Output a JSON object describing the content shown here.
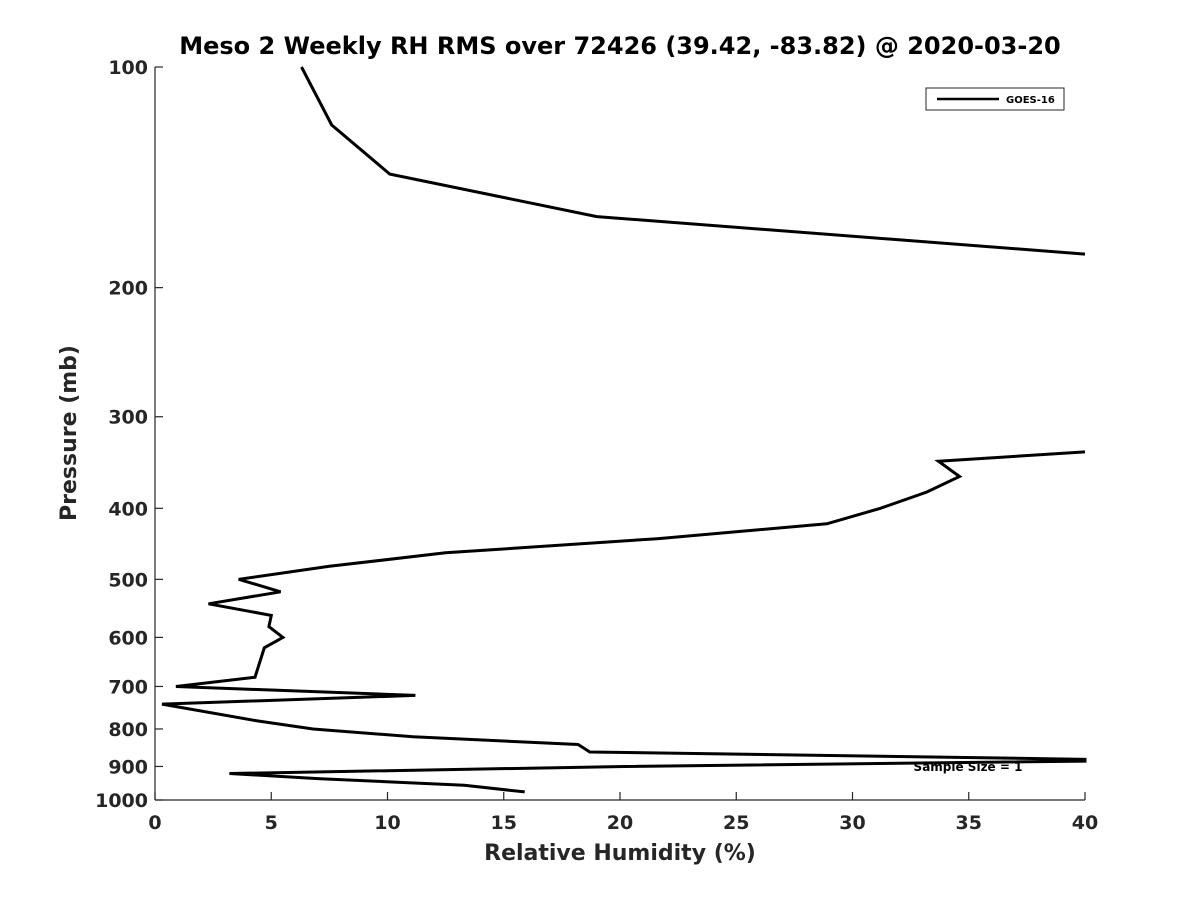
{
  "chart_data": {
    "type": "line",
    "title": "Meso 2 Weekly RH RMS over 72426 (39.42, -83.82) @ 2020-03-20",
    "xlabel": "Relative Humidity (%)",
    "ylabel": "Pressure (mb)",
    "xlim": [
      0,
      40
    ],
    "ylim": [
      1000,
      100
    ],
    "yscale": "log",
    "y_reversed": true,
    "grid": false,
    "legend_position": "top-right",
    "xticks": [
      0,
      5,
      10,
      15,
      20,
      25,
      30,
      35,
      40
    ],
    "yticks": [
      100,
      200,
      300,
      400,
      500,
      600,
      700,
      800,
      900,
      1000
    ],
    "annotation": "Sample Size = 1",
    "series": [
      {
        "name": "GOES-16",
        "color": "#000000",
        "segments": [
          [
            {
              "x": 6.3,
              "y": 100
            },
            {
              "x": 7.6,
              "y": 120
            },
            {
              "x": 10.1,
              "y": 140
            },
            {
              "x": 19.0,
              "y": 160
            },
            {
              "x": 40.0,
              "y": 180
            }
          ],
          [
            {
              "x": 40.0,
              "y": 335
            },
            {
              "x": 33.7,
              "y": 345
            },
            {
              "x": 34.6,
              "y": 362
            },
            {
              "x": 33.2,
              "y": 380
            },
            {
              "x": 31.2,
              "y": 400
            },
            {
              "x": 28.9,
              "y": 420
            },
            {
              "x": 21.6,
              "y": 440
            },
            {
              "x": 12.5,
              "y": 460
            },
            {
              "x": 7.5,
              "y": 480
            },
            {
              "x": 3.6,
              "y": 500
            },
            {
              "x": 5.4,
              "y": 520
            },
            {
              "x": 2.3,
              "y": 540
            },
            {
              "x": 5.0,
              "y": 560
            },
            {
              "x": 4.9,
              "y": 580
            },
            {
              "x": 5.5,
              "y": 600
            },
            {
              "x": 4.7,
              "y": 620
            },
            {
              "x": 4.3,
              "y": 680
            },
            {
              "x": 0.9,
              "y": 700
            },
            {
              "x": 11.2,
              "y": 720
            },
            {
              "x": 0.3,
              "y": 740
            },
            {
              "x": 4.4,
              "y": 780
            },
            {
              "x": 6.8,
              "y": 800
            },
            {
              "x": 11.1,
              "y": 820
            },
            {
              "x": 18.2,
              "y": 840
            },
            {
              "x": 18.7,
              "y": 860
            },
            {
              "x": 40.0,
              "y": 880
            },
            {
              "x": 40.0,
              "y": 885
            },
            {
              "x": 20.2,
              "y": 900
            },
            {
              "x": 3.2,
              "y": 920
            },
            {
              "x": 7.0,
              "y": 935
            },
            {
              "x": 13.3,
              "y": 955
            },
            {
              "x": 15.9,
              "y": 975
            }
          ]
        ]
      }
    ]
  }
}
